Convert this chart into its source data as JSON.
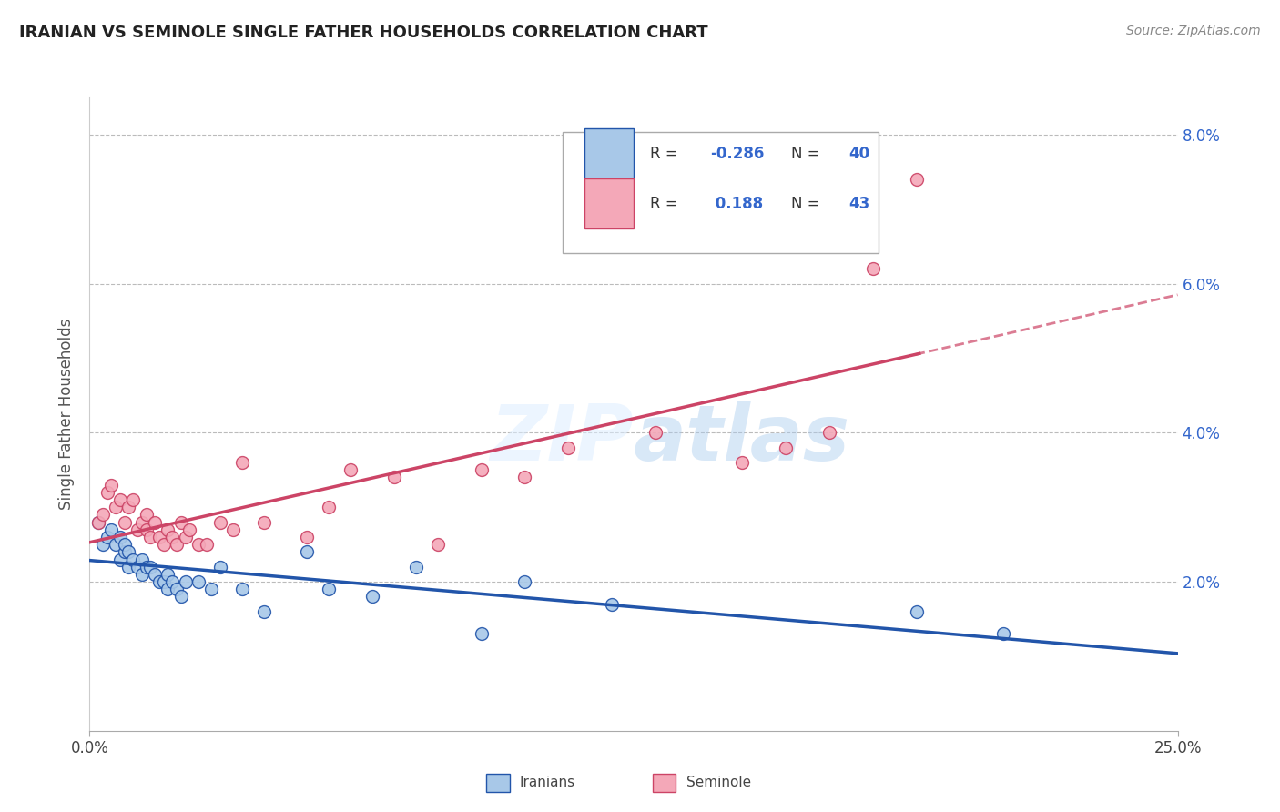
{
  "title": "IRANIAN VS SEMINOLE SINGLE FATHER HOUSEHOLDS CORRELATION CHART",
  "source": "Source: ZipAtlas.com",
  "ylabel": "Single Father Households",
  "xmin": 0.0,
  "xmax": 0.25,
  "ymin": 0.0,
  "ymax": 0.085,
  "yticks": [
    0.02,
    0.04,
    0.06,
    0.08
  ],
  "ytick_labels": [
    "2.0%",
    "4.0%",
    "6.0%",
    "8.0%"
  ],
  "color_iranians": "#a8c8e8",
  "color_seminole": "#f4a8b8",
  "color_iranians_line": "#2255aa",
  "color_seminole_line": "#cc4466",
  "iranians_x": [
    0.002,
    0.003,
    0.004,
    0.005,
    0.006,
    0.007,
    0.007,
    0.008,
    0.008,
    0.009,
    0.009,
    0.01,
    0.011,
    0.012,
    0.012,
    0.013,
    0.014,
    0.015,
    0.016,
    0.017,
    0.018,
    0.018,
    0.019,
    0.02,
    0.021,
    0.022,
    0.025,
    0.028,
    0.03,
    0.035,
    0.04,
    0.05,
    0.055,
    0.065,
    0.075,
    0.09,
    0.1,
    0.12,
    0.19,
    0.21
  ],
  "iranians_y": [
    0.028,
    0.025,
    0.026,
    0.027,
    0.025,
    0.023,
    0.026,
    0.024,
    0.025,
    0.022,
    0.024,
    0.023,
    0.022,
    0.021,
    0.023,
    0.022,
    0.022,
    0.021,
    0.02,
    0.02,
    0.021,
    0.019,
    0.02,
    0.019,
    0.018,
    0.02,
    0.02,
    0.019,
    0.022,
    0.019,
    0.016,
    0.024,
    0.019,
    0.018,
    0.022,
    0.013,
    0.02,
    0.017,
    0.016,
    0.013
  ],
  "seminole_x": [
    0.002,
    0.003,
    0.004,
    0.005,
    0.006,
    0.007,
    0.008,
    0.009,
    0.01,
    0.011,
    0.012,
    0.013,
    0.013,
    0.014,
    0.015,
    0.016,
    0.017,
    0.018,
    0.019,
    0.02,
    0.021,
    0.022,
    0.023,
    0.025,
    0.027,
    0.03,
    0.033,
    0.035,
    0.04,
    0.05,
    0.055,
    0.06,
    0.07,
    0.08,
    0.09,
    0.1,
    0.11,
    0.13,
    0.15,
    0.16,
    0.17,
    0.18,
    0.19
  ],
  "seminole_y": [
    0.028,
    0.029,
    0.032,
    0.033,
    0.03,
    0.031,
    0.028,
    0.03,
    0.031,
    0.027,
    0.028,
    0.029,
    0.027,
    0.026,
    0.028,
    0.026,
    0.025,
    0.027,
    0.026,
    0.025,
    0.028,
    0.026,
    0.027,
    0.025,
    0.025,
    0.028,
    0.027,
    0.036,
    0.028,
    0.026,
    0.03,
    0.035,
    0.034,
    0.025,
    0.035,
    0.034,
    0.038,
    0.04,
    0.036,
    0.038,
    0.04,
    0.062,
    0.074
  ]
}
